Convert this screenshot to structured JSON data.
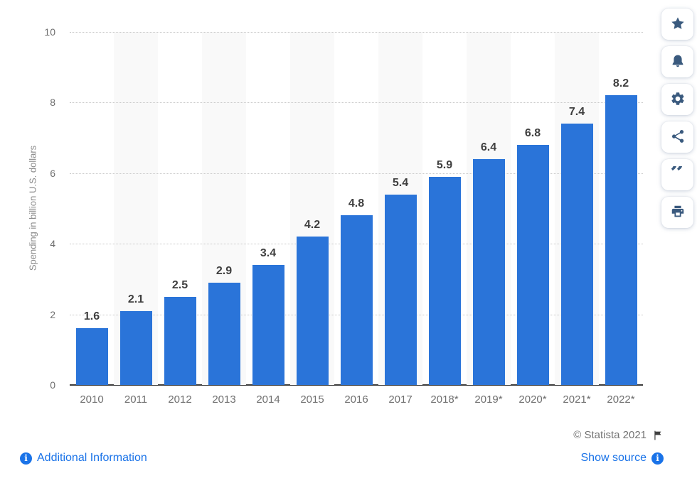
{
  "chart_data": {
    "type": "bar",
    "categories": [
      "2010",
      "2011",
      "2012",
      "2013",
      "2014",
      "2015",
      "2016",
      "2017",
      "2018*",
      "2019*",
      "2020*",
      "2021*",
      "2022*"
    ],
    "values": [
      1.6,
      2.1,
      2.5,
      2.9,
      3.4,
      4.2,
      4.8,
      5.4,
      5.9,
      6.4,
      6.8,
      7.4,
      8.2
    ],
    "value_labels": [
      "1.6",
      "2.1",
      "2.5",
      "2.9",
      "3.4",
      "4.2",
      "4.8",
      "5.4",
      "5.9",
      "6.4",
      "6.8",
      "7.4",
      "8.2"
    ],
    "title": "",
    "xlabel": "",
    "ylabel": "Spending in billion U.S. dollars",
    "ylim": [
      0,
      10
    ],
    "yticks": [
      0,
      2,
      4,
      6,
      8,
      10
    ],
    "grid": "dotted-horizontal",
    "alternating_column_stripes": true,
    "legend": "none"
  },
  "colors": {
    "bar": "#2a74d9",
    "bar_value_label": "#3f3f3f",
    "tick_label": "#6f6f6f",
    "axis_title": "#8a8a8a",
    "gridline": "#c9c9c9",
    "axis_line": "#3c3c3c",
    "stripe": "#f9f9f9",
    "link_blue": "#1a73e8",
    "copyright_gray": "#737373",
    "toolbar_icon": "#3a5a7e"
  },
  "toolbar": {
    "icons": [
      "star-icon",
      "bell-icon",
      "gear-icon",
      "share-icon",
      "quote-icon",
      "printer-icon"
    ]
  },
  "footer": {
    "copyright": "© Statista 2021",
    "additional_info_label": "Additional Information",
    "show_source_label": "Show source",
    "info_icon_glyph": "i"
  }
}
